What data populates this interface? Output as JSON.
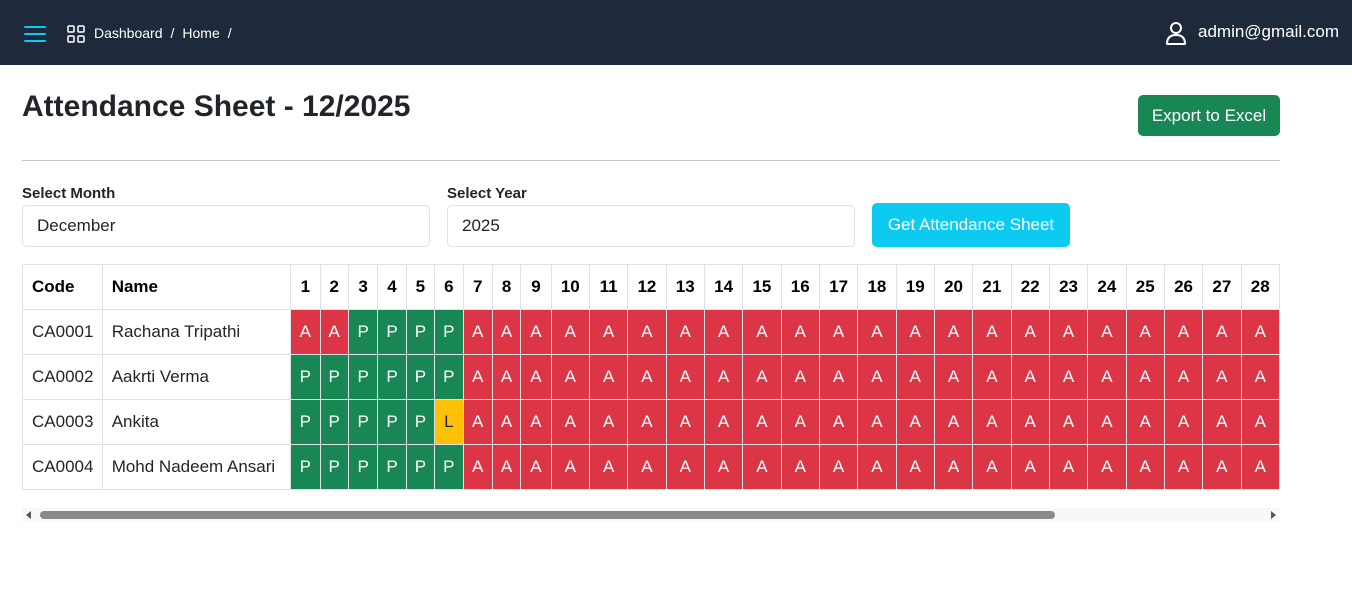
{
  "header": {
    "breadcrumb": [
      "Dashboard",
      "Home"
    ],
    "user_email": "admin@gmail.com"
  },
  "page": {
    "title": "Attendance Sheet - 12/2025",
    "export_label": "Export to Excel"
  },
  "filters": {
    "month_label": "Select Month",
    "month_value": "December",
    "year_label": "Select Year",
    "year_value": "2025",
    "get_label": "Get Attendance Sheet"
  },
  "table": {
    "headers": [
      "Code",
      "Name"
    ],
    "days": [
      "1",
      "2",
      "3",
      "4",
      "5",
      "6",
      "7",
      "8",
      "9",
      "10",
      "11",
      "12",
      "13",
      "14",
      "15",
      "16",
      "17",
      "18",
      "19",
      "20",
      "21",
      "22",
      "23",
      "24",
      "25",
      "26",
      "27",
      "28"
    ],
    "rows": [
      {
        "code": "CA0001",
        "name": "Rachana Tripathi",
        "days": [
          "A",
          "A",
          "P",
          "P",
          "P",
          "P",
          "A",
          "A",
          "A",
          "A",
          "A",
          "A",
          "A",
          "A",
          "A",
          "A",
          "A",
          "A",
          "A",
          "A",
          "A",
          "A",
          "A",
          "A",
          "A",
          "A",
          "A",
          "A"
        ]
      },
      {
        "code": "CA0002",
        "name": "Aakrti Verma",
        "days": [
          "P",
          "P",
          "P",
          "P",
          "P",
          "P",
          "A",
          "A",
          "A",
          "A",
          "A",
          "A",
          "A",
          "A",
          "A",
          "A",
          "A",
          "A",
          "A",
          "A",
          "A",
          "A",
          "A",
          "A",
          "A",
          "A",
          "A",
          "A"
        ]
      },
      {
        "code": "CA0003",
        "name": "Ankita",
        "days": [
          "P",
          "P",
          "P",
          "P",
          "P",
          "L",
          "A",
          "A",
          "A",
          "A",
          "A",
          "A",
          "A",
          "A",
          "A",
          "A",
          "A",
          "A",
          "A",
          "A",
          "A",
          "A",
          "A",
          "A",
          "A",
          "A",
          "A",
          "A"
        ]
      },
      {
        "code": "CA0004",
        "name": "Mohd Nadeem Ansari",
        "days": [
          "P",
          "P",
          "P",
          "P",
          "P",
          "P",
          "A",
          "A",
          "A",
          "A",
          "A",
          "A",
          "A",
          "A",
          "A",
          "A",
          "A",
          "A",
          "A",
          "A",
          "A",
          "A",
          "A",
          "A",
          "A",
          "A",
          "A",
          "A"
        ]
      }
    ]
  },
  "colors": {
    "header_bg": "#1e293b",
    "present": "#198754",
    "absent": "#dc3545",
    "leave": "#ffc107",
    "accent": "#0dcaf0"
  }
}
